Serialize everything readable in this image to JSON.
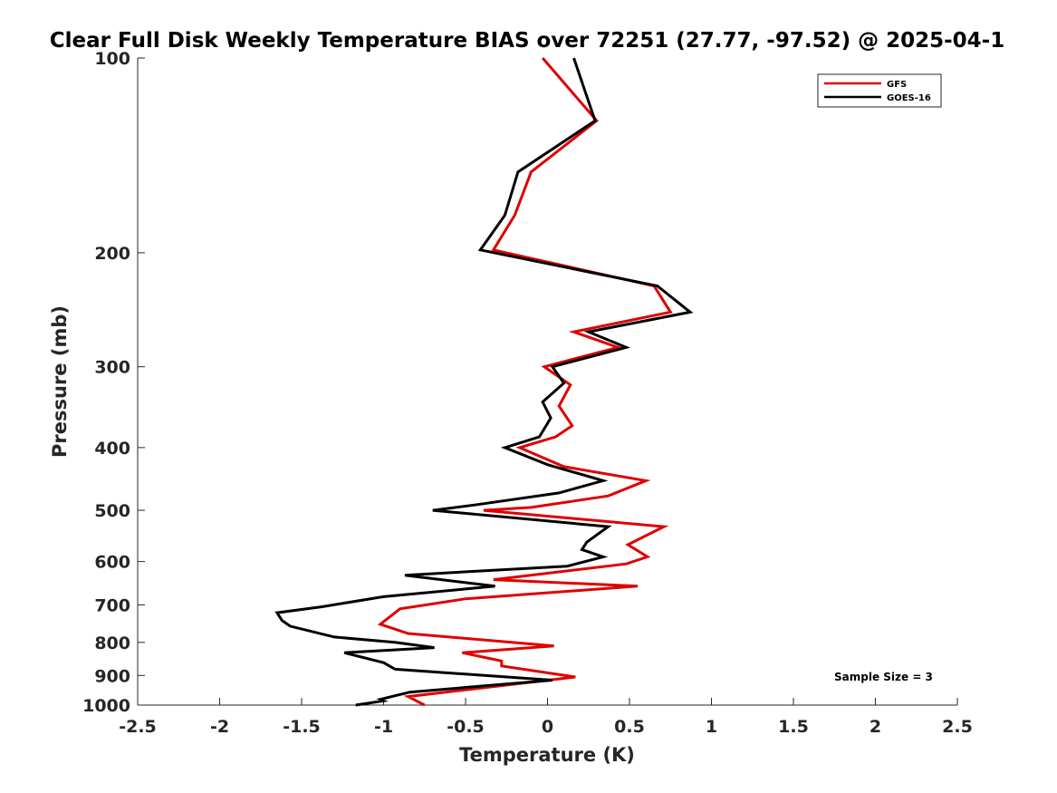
{
  "chart_data": {
    "type": "line",
    "title": "Clear Full Disk Weekly Temperature BIAS over 72251 (27.77, -97.52) @ 2025-04-1",
    "xlabel": "Temperature (K)",
    "ylabel": "Pressure (mb)",
    "xlim": [
      -2.5,
      2.5
    ],
    "ylim": [
      100,
      1000
    ],
    "yscale": "log",
    "y_reversed": true,
    "x_ticks": [
      -2.5,
      -2,
      -1.5,
      -1,
      -0.5,
      0,
      0.5,
      1,
      1.5,
      2,
      2.5
    ],
    "x_tick_labels": [
      "-2.5",
      "-2",
      "-1.5",
      "-1",
      "-0.5",
      "0",
      "0.5",
      "1",
      "1.5",
      "2",
      "2.5"
    ],
    "y_ticks": [
      100,
      200,
      300,
      400,
      500,
      600,
      700,
      800,
      900,
      1000
    ],
    "y_tick_labels": [
      "100",
      "200",
      "300",
      "400",
      "500",
      "600",
      "700",
      "800",
      "900",
      "1000"
    ],
    "legend_position": "top-right",
    "annotation": "Sample Size = 3",
    "series": [
      {
        "name": "GFS",
        "color": "#e00000",
        "points": [
          [
            -0.03,
            100
          ],
          [
            0.3,
            125
          ],
          [
            -0.1,
            150
          ],
          [
            -0.2,
            175
          ],
          [
            -0.33,
            198
          ],
          [
            0.65,
            225
          ],
          [
            0.75,
            247
          ],
          [
            0.16,
            265
          ],
          [
            0.43,
            280
          ],
          [
            -0.02,
            300
          ],
          [
            0.14,
            320
          ],
          [
            0.07,
            345
          ],
          [
            0.15,
            370
          ],
          [
            0.05,
            385
          ],
          [
            -0.17,
            400
          ],
          [
            0.1,
            428
          ],
          [
            0.6,
            450
          ],
          [
            0.37,
            475
          ],
          [
            -0.1,
            495
          ],
          [
            -0.39,
            500
          ],
          [
            0.71,
            530
          ],
          [
            0.49,
            565
          ],
          [
            0.61,
            590
          ],
          [
            0.48,
            605
          ],
          [
            -0.33,
            640
          ],
          [
            0.55,
            655
          ],
          [
            -0.5,
            685
          ],
          [
            -0.9,
            710
          ],
          [
            -1.02,
            750
          ],
          [
            -0.85,
            775
          ],
          [
            0.04,
            810
          ],
          [
            -0.52,
            830
          ],
          [
            -0.28,
            855
          ],
          [
            -0.28,
            870
          ],
          [
            0.17,
            905
          ],
          [
            -0.85,
            970
          ],
          [
            -0.8,
            985
          ],
          [
            -0.75,
            1000
          ]
        ]
      },
      {
        "name": "GOES-16",
        "color": "#000000",
        "points": [
          [
            0.16,
            100
          ],
          [
            0.29,
            125
          ],
          [
            -0.18,
            150
          ],
          [
            -0.26,
            175
          ],
          [
            -0.41,
            198
          ],
          [
            0.67,
            225
          ],
          [
            0.87,
            247
          ],
          [
            0.25,
            265
          ],
          [
            0.48,
            280
          ],
          [
            0.03,
            300
          ],
          [
            0.1,
            318
          ],
          [
            -0.03,
            340
          ],
          [
            0.02,
            360
          ],
          [
            -0.05,
            385
          ],
          [
            -0.26,
            400
          ],
          [
            0.0,
            425
          ],
          [
            0.34,
            450
          ],
          [
            0.07,
            470
          ],
          [
            -0.43,
            490
          ],
          [
            -0.7,
            500
          ],
          [
            0.37,
            530
          ],
          [
            0.24,
            560
          ],
          [
            0.21,
            575
          ],
          [
            0.34,
            590
          ],
          [
            0.12,
            610
          ],
          [
            -0.87,
            630
          ],
          [
            -0.32,
            655
          ],
          [
            -1.0,
            680
          ],
          [
            -1.38,
            705
          ],
          [
            -1.65,
            720
          ],
          [
            -1.62,
            740
          ],
          [
            -1.57,
            755
          ],
          [
            -1.3,
            785
          ],
          [
            -0.93,
            800
          ],
          [
            -0.69,
            815
          ],
          [
            -1.24,
            830
          ],
          [
            -1.0,
            860
          ],
          [
            -0.93,
            880
          ],
          [
            0.03,
            915
          ],
          [
            -0.84,
            955
          ],
          [
            -1.02,
            980
          ],
          [
            -1.0,
            985
          ],
          [
            -1.17,
            1000
          ]
        ]
      }
    ]
  }
}
